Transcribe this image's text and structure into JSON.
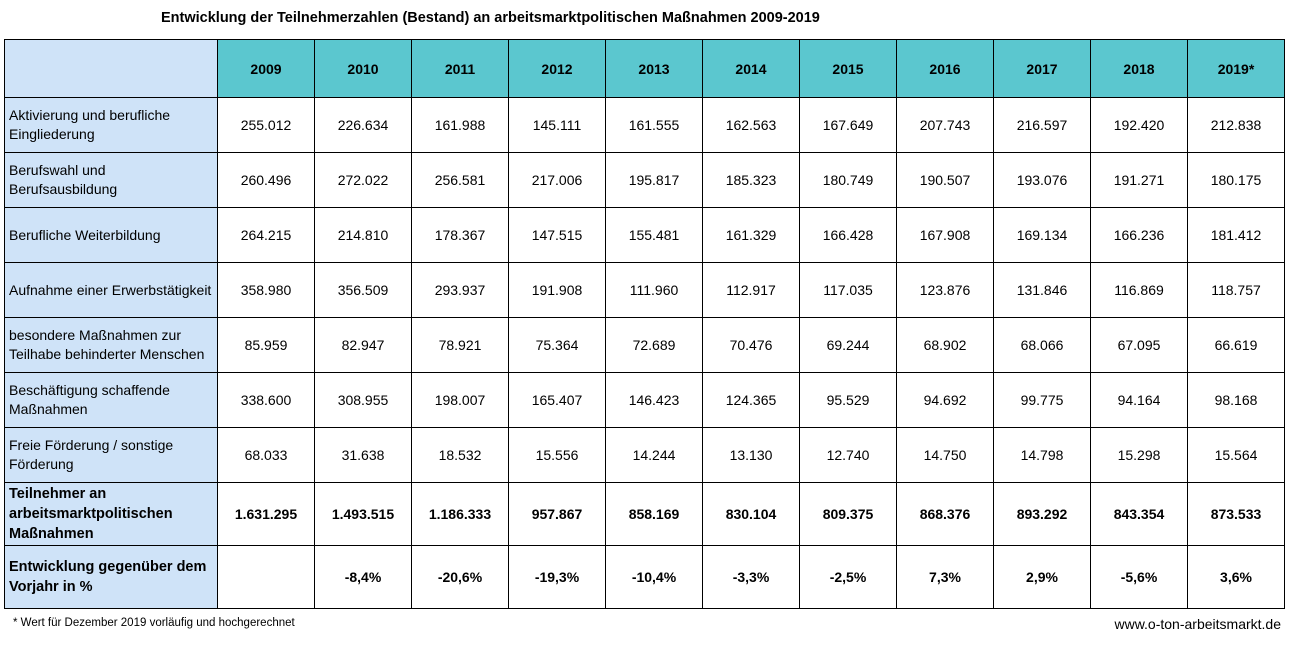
{
  "title": "Entwicklung der Teilnehmerzahlen (Bestand) an arbeitsmarktpolitischen Maßnahmen 2009-2019",
  "years": [
    "2009",
    "2010",
    "2011",
    "2012",
    "2013",
    "2014",
    "2015",
    "2016",
    "2017",
    "2018",
    "2019*"
  ],
  "rows": [
    {
      "label": "Aktivierung und berufliche Eingliederung",
      "values": [
        "255.012",
        "226.634",
        "161.988",
        "145.111",
        "161.555",
        "162.563",
        "167.649",
        "207.743",
        "216.597",
        "192.420",
        "212.838"
      ]
    },
    {
      "label": "Berufswahl und Berufsausbildung",
      "values": [
        "260.496",
        "272.022",
        "256.581",
        "217.006",
        "195.817",
        "185.323",
        "180.749",
        "190.507",
        "193.076",
        "191.271",
        "180.175"
      ]
    },
    {
      "label": "Berufliche Weiterbildung",
      "values": [
        "264.215",
        "214.810",
        "178.367",
        "147.515",
        "155.481",
        "161.329",
        "166.428",
        "167.908",
        "169.134",
        "166.236",
        "181.412"
      ]
    },
    {
      "label": "Aufnahme einer Erwerbstätigkeit",
      "values": [
        "358.980",
        "356.509",
        "293.937",
        "191.908",
        "111.960",
        "112.917",
        "117.035",
        "123.876",
        "131.846",
        "116.869",
        "118.757"
      ]
    },
    {
      "label": "besondere Maßnahmen zur Teilhabe behinderter Menschen",
      "values": [
        "85.959",
        "82.947",
        "78.921",
        "75.364",
        "72.689",
        "70.476",
        "69.244",
        "68.902",
        "68.066",
        "67.095",
        "66.619"
      ]
    },
    {
      "label": "Beschäftigung schaffende Maßnahmen",
      "values": [
        "338.600",
        "308.955",
        "198.007",
        "165.407",
        "146.423",
        "124.365",
        "95.529",
        "94.692",
        "99.775",
        "94.164",
        "98.168"
      ]
    },
    {
      "label": "Freie Förderung / sonstige Förderung",
      "values": [
        "68.033",
        "31.638",
        "18.532",
        "15.556",
        "14.244",
        "13.130",
        "12.740",
        "14.750",
        "14.798",
        "15.298",
        "15.564"
      ]
    }
  ],
  "total": {
    "label": "Teilnehmer an arbeitsmarktpolitischen Maßnahmen",
    "values": [
      "1.631.295",
      "1.493.515",
      "1.186.333",
      "957.867",
      "858.169",
      "830.104",
      "809.375",
      "868.376",
      "893.292",
      "843.354",
      "873.533"
    ]
  },
  "change": {
    "label": "Entwicklung gegenüber dem Vorjahr in %",
    "values": [
      "",
      "-8,4%",
      "-20,6%",
      "-19,3%",
      "-10,4%",
      "-3,3%",
      "-2,5%",
      "7,3%",
      "2,9%",
      "-5,6%",
      "3,6%"
    ]
  },
  "footnote": "* Wert für Dezember 2019 vorläufig und hochgerechnet",
  "source": "www.o-ton-arbeitsmarkt.de",
  "colors": {
    "header": "#5bc7cf",
    "label_column": "#cfe3f8"
  }
}
